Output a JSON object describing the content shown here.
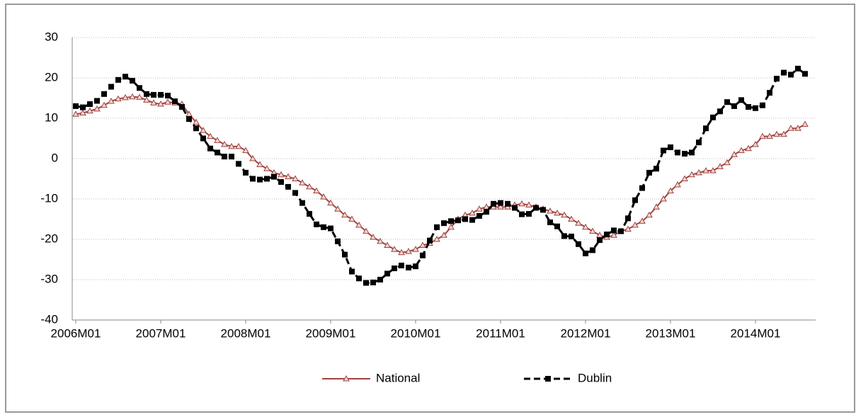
{
  "chart_data": {
    "type": "line",
    "categories": [
      "2006M01",
      null,
      null,
      null,
      null,
      null,
      null,
      null,
      null,
      null,
      null,
      null,
      "2007M01",
      null,
      null,
      null,
      null,
      null,
      null,
      null,
      null,
      null,
      null,
      null,
      "2008M01",
      null,
      null,
      null,
      null,
      null,
      null,
      null,
      null,
      null,
      null,
      null,
      "2009M01",
      null,
      null,
      null,
      null,
      null,
      null,
      null,
      null,
      null,
      null,
      null,
      "2010M01",
      null,
      null,
      null,
      null,
      null,
      null,
      null,
      null,
      null,
      null,
      null,
      "2011M01",
      null,
      null,
      null,
      null,
      null,
      null,
      null,
      null,
      null,
      null,
      null,
      "2012M01",
      null,
      null,
      null,
      null,
      null,
      null,
      null,
      null,
      null,
      null,
      null,
      "2013M01",
      null,
      null,
      null,
      null,
      null,
      null,
      null,
      null,
      null,
      null,
      null,
      "2014M01",
      null,
      null,
      null,
      null,
      null,
      null,
      null
    ],
    "series": [
      {
        "name": "National",
        "color": "#9e4340",
        "marker": "triangle",
        "dash": false,
        "values": [
          11,
          11.3,
          11.8,
          12.3,
          13.2,
          14.2,
          14.8,
          15.1,
          15.3,
          15.2,
          14.5,
          13.8,
          13.5,
          14,
          13.8,
          13.5,
          11,
          9,
          7,
          5.5,
          4.5,
          3.5,
          3,
          3,
          2,
          0,
          -1.5,
          -2.5,
          -3.5,
          -4,
          -4.5,
          -5,
          -6,
          -7,
          -8,
          -9.5,
          -11,
          -12.5,
          -14,
          -15,
          -16.5,
          -18,
          -19.5,
          -20.5,
          -21.5,
          -22.5,
          -23.3,
          -23,
          -22.5,
          -21.5,
          -21,
          -20,
          -19,
          -17,
          -15,
          -14,
          -13.5,
          -12.5,
          -12,
          -12,
          -12,
          -12,
          -11.5,
          -11.2,
          -11.5,
          -12,
          -12.5,
          -13,
          -13.5,
          -14,
          -15,
          -16,
          -17,
          -18,
          -19,
          -19.5,
          -19,
          -18,
          -17.5,
          -16.5,
          -15.5,
          -14,
          -12,
          -10,
          -8,
          -6.5,
          -5,
          -4,
          -3.5,
          -3,
          -3,
          -2,
          -1,
          1,
          2,
          2.5,
          3.5,
          5.5,
          5.5,
          6,
          6,
          7.5,
          7.5,
          8.5
        ]
      },
      {
        "name": "Dublin",
        "color": "#000000",
        "marker": "square",
        "dash": true,
        "values": [
          13,
          12.7,
          13.5,
          14.3,
          16,
          17.8,
          19.5,
          20.3,
          19.3,
          17.5,
          16,
          15.8,
          15.8,
          15.6,
          14.2,
          12.8,
          9.8,
          7.5,
          5,
          2.5,
          1.5,
          0.5,
          0.5,
          -1.3,
          -3.5,
          -5,
          -5.2,
          -5,
          -4.5,
          -5.8,
          -7,
          -8.5,
          -11,
          -13.7,
          -16.3,
          -17,
          -17.3,
          -20.5,
          -23.8,
          -28,
          -29.7,
          -30.8,
          -30.7,
          -30,
          -28.5,
          -27.2,
          -26.5,
          -27,
          -26.7,
          -24,
          -20.3,
          -17,
          -16,
          -15.5,
          -15.3,
          -15,
          -15.2,
          -14.2,
          -13.2,
          -11.2,
          -11,
          -11.2,
          -12.2,
          -13.8,
          -13.7,
          -12.2,
          -12.7,
          -15.8,
          -16.8,
          -19.2,
          -19.3,
          -21.2,
          -23.5,
          -22.7,
          -20.2,
          -18.8,
          -17.8,
          -18,
          -14.8,
          -10.3,
          -7.3,
          -3.5,
          -2.5,
          2,
          2.8,
          1.5,
          1.2,
          1.5,
          4,
          7.5,
          10.2,
          11.7,
          14,
          13,
          14.5,
          12.8,
          12.5,
          13.2,
          16.3,
          19.8,
          21.3,
          20.8,
          22.3,
          21
        ]
      }
    ],
    "ylim": [
      -40,
      30
    ],
    "yticks": [
      -40,
      -30,
      -20,
      -10,
      0,
      10,
      20,
      30
    ],
    "grid": true,
    "legend": "bottom"
  }
}
